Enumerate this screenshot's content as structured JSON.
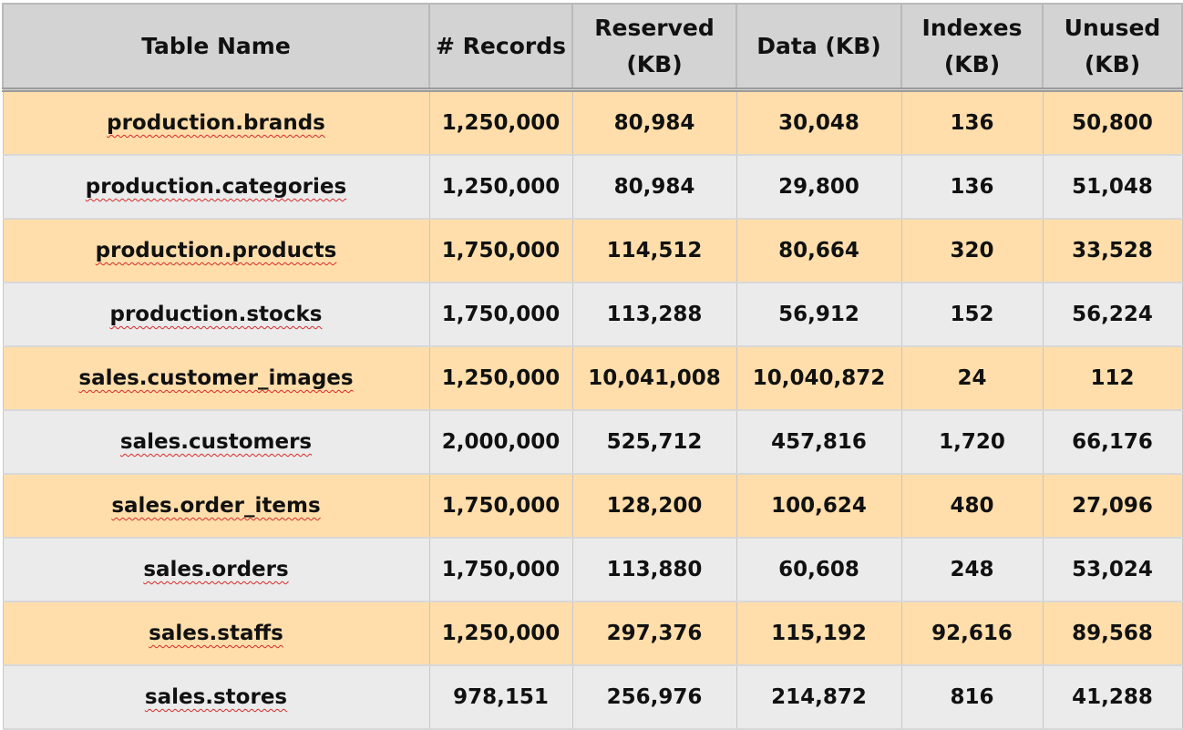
{
  "columns": [
    "Table Name",
    "# Records",
    "Reserved (KB)",
    "Data (KB)",
    "Indexes (KB)",
    "Unused (KB)"
  ],
  "rows": [
    {
      "name": "production.brands",
      "records": "1,250,000",
      "reserved": "80,984",
      "data": "30,048",
      "indexes": "136",
      "unused": "50,800"
    },
    {
      "name": "production.categories",
      "records": "1,250,000",
      "reserved": "80,984",
      "data": "29,800",
      "indexes": "136",
      "unused": "51,048"
    },
    {
      "name": "production.products",
      "records": "1,750,000",
      "reserved": "114,512",
      "data": "80,664",
      "indexes": "320",
      "unused": "33,528"
    },
    {
      "name": "production.stocks",
      "records": "1,750,000",
      "reserved": "113,288",
      "data": "56,912",
      "indexes": "152",
      "unused": "56,224"
    },
    {
      "name": "sales.customer_images",
      "records": "1,250,000",
      "reserved": "10,041,008",
      "data": "10,040,872",
      "indexes": "24",
      "unused": "112"
    },
    {
      "name": "sales.customers",
      "records": "2,000,000",
      "reserved": "525,712",
      "data": "457,816",
      "indexes": "1,720",
      "unused": "66,176"
    },
    {
      "name": "sales.order_items",
      "records": "1,750,000",
      "reserved": "128,200",
      "data": "100,624",
      "indexes": "480",
      "unused": "27,096"
    },
    {
      "name": "sales.orders",
      "records": "1,750,000",
      "reserved": "113,880",
      "data": "60,608",
      "indexes": "248",
      "unused": "53,024"
    },
    {
      "name": "sales.staffs",
      "records": "1,250,000",
      "reserved": "297,376",
      "data": "115,192",
      "indexes": "92,616",
      "unused": "89,568"
    },
    {
      "name": "sales.stores",
      "records": "978,151",
      "reserved": "256,976",
      "data": "214,872",
      "indexes": "816",
      "unused": "41,288"
    }
  ],
  "colors": {
    "header_bg": "#d3d3d3",
    "row_band_a": "#ffdeab",
    "row_band_b": "#ebebeb",
    "spellcheck_underline": "#d52a2a"
  }
}
